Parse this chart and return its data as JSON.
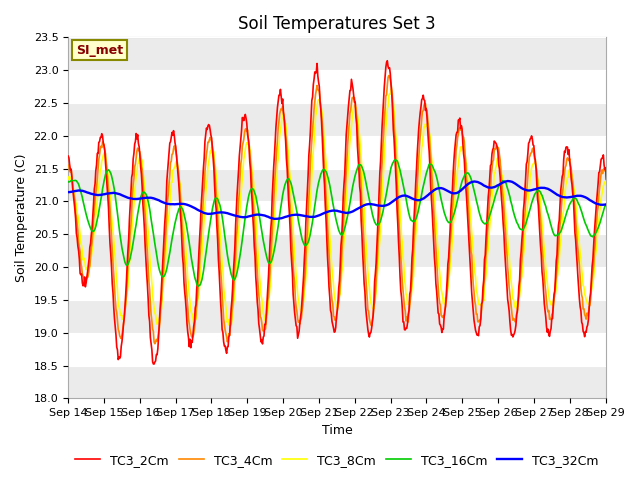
{
  "title": "Soil Temperatures Set 3",
  "xlabel": "Time",
  "ylabel": "Soil Temperature (C)",
  "ylim": [
    18.0,
    23.5
  ],
  "yticks": [
    18.0,
    18.5,
    19.0,
    19.5,
    20.0,
    20.5,
    21.0,
    21.5,
    22.0,
    22.5,
    23.0,
    23.5
  ],
  "xtick_labels": [
    "Sep 14",
    "Sep 15",
    "Sep 16",
    "Sep 17",
    "Sep 18",
    "Sep 19",
    "Sep 20",
    "Sep 21",
    "Sep 22",
    "Sep 23",
    "Sep 24",
    "Sep 25",
    "Sep 26",
    "Sep 27",
    "Sep 28",
    "Sep 29"
  ],
  "series_colors": [
    "#ff0000",
    "#ff8800",
    "#ffff00",
    "#00cc00",
    "#0000ff"
  ],
  "series_labels": [
    "TC3_2Cm",
    "TC3_4Cm",
    "TC3_8Cm",
    "TC3_16Cm",
    "TC3_32Cm"
  ],
  "fig_bg_color": "#ffffff",
  "plot_bg_color": "#ffffff",
  "grid_color": "#e0e0e0",
  "annotation_text": "SI_met",
  "annotation_bg": "#ffffcc",
  "annotation_border": "#888800",
  "annotation_text_color": "#880000",
  "title_fontsize": 12,
  "axis_fontsize": 9,
  "tick_fontsize": 8,
  "legend_fontsize": 9,
  "line_width": 1.2
}
